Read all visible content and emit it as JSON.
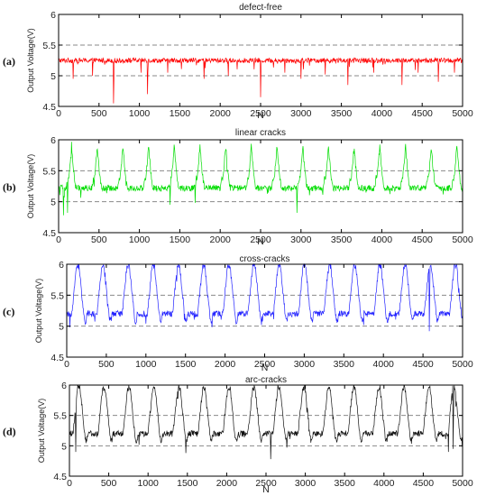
{
  "chart_data": [
    {
      "type": "line",
      "panel_label": "(a)",
      "title": "defect-free",
      "xlabel": "N",
      "ylabel": "Output Voltage(V)",
      "xlim": [
        0,
        5000
      ],
      "ylim": [
        4.5,
        6
      ],
      "xticks": [
        "0",
        "500",
        "1000",
        "1500",
        "2000",
        "2500",
        "3000",
        "3500",
        "4000",
        "4500",
        "5000"
      ],
      "yticks": [
        "4.5",
        "5",
        "5.5",
        "6"
      ],
      "reference_lines": [
        5.0,
        5.5
      ],
      "color": "#ff0000",
      "pattern": {
        "kind": "flat",
        "baseline": 5.25,
        "noise": 0.04,
        "dips": [
          [
            180,
            4.95
          ],
          [
            420,
            5.0
          ],
          [
            680,
            4.55
          ],
          [
            1020,
            5.05
          ],
          [
            1100,
            4.7
          ],
          [
            1350,
            5.05
          ],
          [
            1800,
            4.95
          ],
          [
            2100,
            5.0
          ],
          [
            2500,
            4.65
          ],
          [
            2800,
            5.05
          ],
          [
            3000,
            4.95
          ],
          [
            3300,
            5.02
          ],
          [
            3580,
            4.85
          ],
          [
            3900,
            5.05
          ],
          [
            4250,
            4.85
          ],
          [
            4450,
            5.05
          ],
          [
            4700,
            4.9
          ],
          [
            4900,
            5.05
          ]
        ]
      }
    },
    {
      "type": "line",
      "panel_label": "(b)",
      "title": "linear cracks",
      "xlabel": "N",
      "ylabel": "Output Voltage(V)",
      "xlim": [
        0,
        5000
      ],
      "ylim": [
        4.5,
        6
      ],
      "xticks": [
        "0",
        "500",
        "1000",
        "1500",
        "2000",
        "2500",
        "3000",
        "3500",
        "4000",
        "4500",
        "5000"
      ],
      "yticks": [
        "4.5",
        "5",
        "5.5",
        "6"
      ],
      "reference_lines": [
        5.0,
        5.5
      ],
      "color": "#00dd00",
      "pattern": {
        "kind": "spiky",
        "period": 318,
        "first_peak": 160,
        "baseline": 5.22,
        "peak": 5.92,
        "noise": 0.05,
        "dips": [
          [
            60,
            4.78
          ],
          [
            110,
            4.82
          ],
          [
            2950,
            4.82
          ],
          [
            1380,
            4.95
          ],
          [
            1690,
            4.98
          ]
        ]
      }
    },
    {
      "type": "line",
      "panel_label": "(c)",
      "title": "cross-cracks",
      "xlabel": "N",
      "ylabel": "Output Voltage(V)",
      "xlim": [
        0,
        5000
      ],
      "ylim": [
        4.5,
        6
      ],
      "xticks": [
        "0",
        "500",
        "1000",
        "1500",
        "2000",
        "2500",
        "3000",
        "3500",
        "4000",
        "4500",
        "5000"
      ],
      "yticks": [
        "4.5",
        "5",
        "5.5",
        "6"
      ],
      "reference_lines": [
        5.0,
        5.5
      ],
      "color": "#2222ff",
      "pattern": {
        "kind": "plateau",
        "period": 318,
        "first_peak": 140,
        "baseline": 5.2,
        "peak": 5.97,
        "noise": 0.05,
        "dips": [
          [
            40,
            4.98
          ],
          [
            4580,
            4.92
          ],
          [
            2460,
            5.02
          ]
        ]
      }
    },
    {
      "type": "line",
      "panel_label": "(d)",
      "title": "arc-cracks",
      "xlabel": "N",
      "ylabel": "Output Voltage(V)",
      "xlim": [
        0,
        5000
      ],
      "ylim": [
        4.5,
        6
      ],
      "xticks": [
        "0",
        "500",
        "1000",
        "1500",
        "2000",
        "2500",
        "3000",
        "3500",
        "4000",
        "4500",
        "5000"
      ],
      "yticks": [
        "4.5",
        "5",
        "5.5",
        "6"
      ],
      "reference_lines": [
        5.0,
        5.5
      ],
      "color": "#111111",
      "pattern": {
        "kind": "plateau",
        "period": 318,
        "first_peak": 120,
        "baseline": 5.2,
        "peak": 5.95,
        "noise": 0.05,
        "dips": [
          [
            80,
            4.9
          ],
          [
            1480,
            4.88
          ],
          [
            2560,
            4.78
          ],
          [
            4820,
            4.9
          ],
          [
            4880,
            4.95
          ]
        ]
      }
    }
  ]
}
